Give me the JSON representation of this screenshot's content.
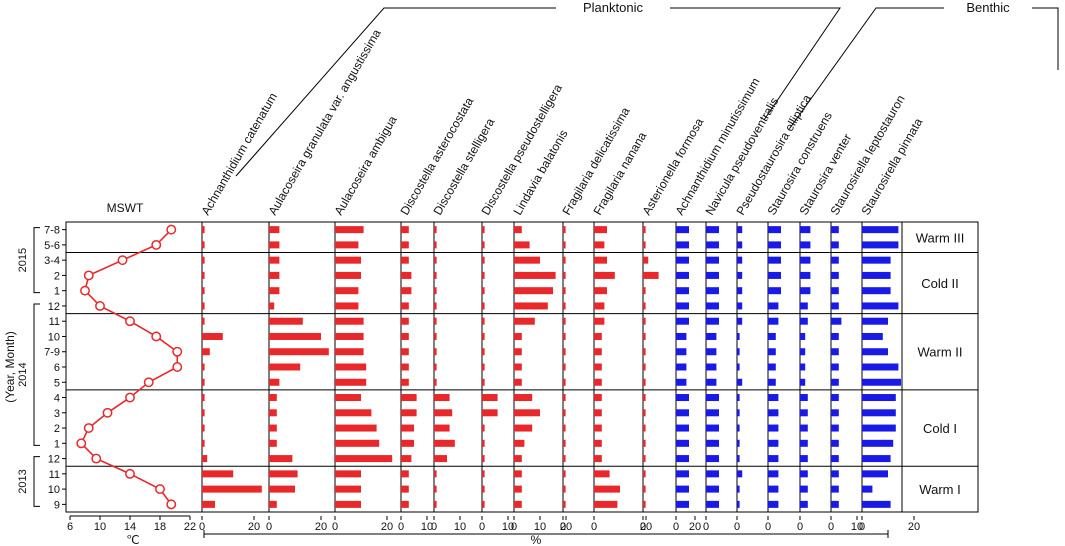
{
  "chart_data": {
    "type": "bar",
    "title": "",
    "y_axis_title": "(Year, Month)",
    "years": [
      {
        "label": "2015",
        "rows": [
          "7-8",
          "5-6",
          "3-4",
          "2",
          "1"
        ]
      },
      {
        "label": "2014",
        "rows": [
          "12",
          "11",
          "10",
          "7-9",
          "6",
          "5",
          "4",
          "3",
          "2",
          "1"
        ]
      },
      {
        "label": "2013",
        "rows": [
          "12",
          "11",
          "10",
          "9"
        ]
      }
    ],
    "rows": [
      "7-8",
      "5-6",
      "3-4",
      "2",
      "1",
      "12",
      "11",
      "10",
      "7-9",
      "6",
      "5",
      "4",
      "3",
      "2",
      "1",
      "12",
      "11",
      "10",
      "9"
    ],
    "zones": [
      {
        "label": "Warm III",
        "rows": [
          "7-8",
          "5-6"
        ]
      },
      {
        "label": "Cold II",
        "rows": [
          "3-4",
          "2",
          "1",
          "12"
        ]
      },
      {
        "label": "Warm II",
        "rows": [
          "11",
          "10",
          "7-9",
          "6",
          "5"
        ]
      },
      {
        "label": "Cold I",
        "rows": [
          "4",
          "3",
          "2",
          "1",
          "12"
        ]
      },
      {
        "label": "Warm I",
        "rows": [
          "11",
          "10",
          "9"
        ]
      }
    ],
    "groups": [
      {
        "label": "Planktonic"
      },
      {
        "label": "Benthic"
      }
    ],
    "mswt": {
      "label": "MSWT",
      "unit": "℃",
      "xlim": [
        6,
        22
      ],
      "ticks": [
        "6",
        "10",
        "14",
        "18",
        "22"
      ],
      "color": "#e8282b",
      "values": [
        19.5,
        17.5,
        13,
        8.5,
        8,
        10,
        14,
        17.5,
        20.3,
        20.3,
        16.5,
        14,
        11,
        8.5,
        7.5,
        9.5,
        14,
        18,
        19.5
      ]
    },
    "percent_unit": "%",
    "series": [
      {
        "name": "Achnanthidium catenatum",
        "color": "#e8282b",
        "ticks": [
          "0",
          "20"
        ],
        "values": [
          1,
          1,
          1,
          1,
          1,
          1,
          1,
          8,
          3,
          1,
          1,
          1,
          1,
          1,
          1,
          2,
          12,
          23,
          5
        ]
      },
      {
        "name": "Aulacoseira granulata var. angustissima",
        "color": "#e8282b",
        "ticks": [
          "0",
          "20"
        ],
        "values": [
          4,
          4,
          4,
          4,
          4,
          2,
          13,
          20,
          23,
          12,
          4,
          3,
          3,
          3,
          3,
          9,
          11,
          10,
          3
        ]
      },
      {
        "name": "Aulacoseira ambigua",
        "color": "#e8282b",
        "ticks": [
          "0",
          "20"
        ],
        "values": [
          11,
          9,
          10,
          10,
          9,
          9,
          11,
          11,
          11,
          12,
          12,
          10,
          14,
          16,
          17,
          22,
          10,
          10,
          10
        ]
      },
      {
        "name": "Discostella asterocostata",
        "color": "#e8282b",
        "ticks": [
          "0",
          "10"
        ],
        "values": [
          3,
          3,
          3,
          4,
          4,
          3,
          3,
          3,
          3,
          3,
          3,
          6,
          6,
          5,
          5,
          4,
          3,
          3,
          3
        ]
      },
      {
        "name": "Discostella stelligera",
        "color": "#e8282b",
        "ticks": [
          "0",
          "10"
        ],
        "values": [
          1,
          1,
          1,
          1,
          1,
          1,
          1,
          1,
          1,
          1,
          1,
          6,
          7,
          6,
          8,
          5,
          1,
          1,
          1
        ]
      },
      {
        "name": "Discostella pseudostelligera",
        "color": "#e8282b",
        "ticks": [
          "0",
          "10"
        ],
        "values": [
          1,
          1,
          1,
          1,
          1,
          1,
          1,
          1,
          1,
          1,
          1,
          6,
          6,
          1,
          1,
          1,
          1,
          1,
          1
        ]
      },
      {
        "name": "Lindavia balatonis",
        "color": "#e8282b",
        "ticks": [
          "0",
          "10",
          "20"
        ],
        "values": [
          3,
          6,
          10,
          16,
          15,
          13,
          8,
          3,
          3,
          3,
          3,
          7,
          10,
          7,
          4,
          3,
          3,
          3,
          3
        ]
      },
      {
        "name": "Fragilaria delicatissima",
        "color": "#e8282b",
        "ticks": [
          "0"
        ],
        "values": [
          1,
          1,
          1,
          1,
          1,
          1,
          1,
          1,
          1,
          1,
          1,
          1,
          1,
          1,
          1,
          1,
          1,
          1,
          1
        ]
      },
      {
        "name": "Fragilaria nanana",
        "color": "#e8282b",
        "ticks": [
          "0",
          "20"
        ],
        "values": [
          5,
          4,
          5,
          8,
          5,
          4,
          4,
          3,
          3,
          3,
          3,
          3,
          3,
          3,
          3,
          3,
          6,
          10,
          9
        ]
      },
      {
        "name": "Asterionella formosa",
        "color": "#e8282b",
        "ticks": [
          "0",
          "20"
        ],
        "values": [
          1,
          1,
          2,
          6,
          1,
          1,
          1,
          1,
          1,
          1,
          1,
          1,
          1,
          1,
          1,
          1,
          1,
          1,
          1
        ]
      },
      {
        "name": "Achnanthidium minutissimum",
        "color": "#1a1ae6",
        "ticks": [
          "0"
        ],
        "values": [
          5,
          5,
          5,
          5,
          5,
          5,
          5,
          4,
          4,
          4,
          4,
          5,
          5,
          5,
          5,
          5,
          5,
          5,
          5
        ]
      },
      {
        "name": "Navicula pseudoventralis",
        "color": "#1a1ae6",
        "ticks": [
          "0"
        ],
        "values": [
          5,
          5,
          5,
          5,
          5,
          5,
          5,
          4,
          4,
          4,
          4,
          5,
          5,
          5,
          5,
          5,
          5,
          5,
          5
        ]
      },
      {
        "name": "Pseudostaurosira elliptica",
        "color": "#1a1ae6",
        "ticks": [
          "0"
        ],
        "values": [
          2,
          2,
          2,
          2,
          2,
          2,
          2,
          1,
          1,
          1,
          2,
          1,
          1,
          1,
          1,
          1,
          2,
          1,
          1
        ]
      },
      {
        "name": "Staurosira construens",
        "color": "#1a1ae6",
        "ticks": [
          "0"
        ],
        "values": [
          5,
          5,
          5,
          5,
          5,
          4,
          4,
          3,
          3,
          3,
          3,
          4,
          4,
          4,
          4,
          4,
          4,
          4,
          4
        ]
      },
      {
        "name": "Staurosira venter",
        "color": "#1a1ae6",
        "ticks": [
          "0"
        ],
        "values": [
          4,
          4,
          4,
          4,
          4,
          3,
          3,
          2,
          2,
          2,
          2,
          3,
          3,
          3,
          3,
          3,
          3,
          3,
          3
        ]
      },
      {
        "name": "Staurosirella leptostauron",
        "color": "#1a1ae6",
        "ticks": [
          "0",
          "10"
        ],
        "values": [
          3,
          3,
          3,
          3,
          3,
          3,
          4,
          3,
          3,
          3,
          3,
          3,
          3,
          3,
          3,
          3,
          3,
          3,
          3
        ]
      },
      {
        "name": "Staurosirella pinnata",
        "color": "#1a1ae6",
        "ticks": [
          "0",
          "20"
        ],
        "values": [
          14,
          14,
          11,
          11,
          11,
          14,
          10,
          8,
          10,
          14,
          15,
          13,
          13,
          13,
          12,
          11,
          10,
          4,
          11
        ]
      }
    ]
  }
}
